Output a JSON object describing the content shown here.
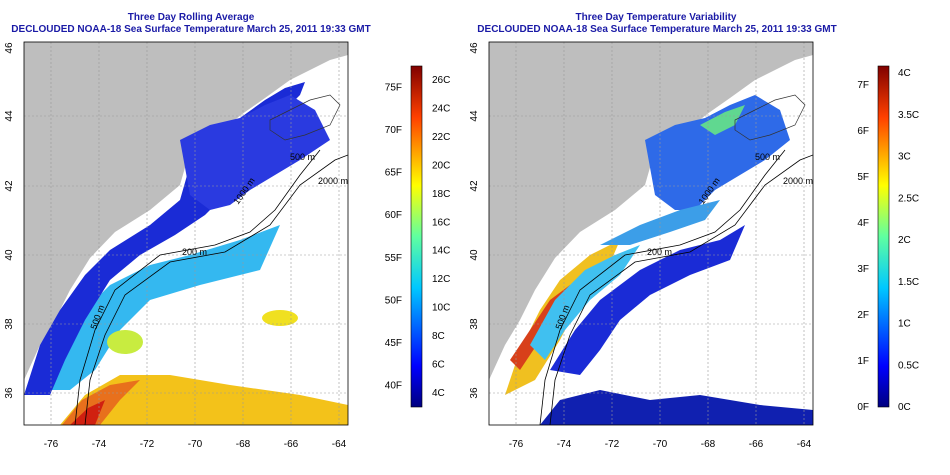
{
  "left_panel": {
    "title_line1": "Three Day Rolling Average",
    "title_line2": "DECLOUDED NOAA-18 Sea Surface Temperature March 25, 2011 19:33 GMT",
    "x_ticks": [
      "-76",
      "-74",
      "-72",
      "-70",
      "-68",
      "-66",
      "-64"
    ],
    "y_ticks": [
      "36",
      "38",
      "40",
      "42",
      "44",
      "46"
    ],
    "isobath_labels": [
      "200 m",
      "2000 m",
      "500 m",
      "500 m",
      "1000 m"
    ],
    "colorbar_c": [
      "4C",
      "6C",
      "8C",
      "10C",
      "12C",
      "14C",
      "16C",
      "18C",
      "20C",
      "22C",
      "24C",
      "26C"
    ],
    "colorbar_f": [
      "40F",
      "45F",
      "50F",
      "55F",
      "60F",
      "65F",
      "70F",
      "75F"
    ]
  },
  "right_panel": {
    "title_line1": "Three Day Temperature Variability",
    "title_line2": "DECLOUDED NOAA-18 Sea Surface Temperature March 25, 2011 19:33 GMT",
    "x_ticks": [
      "-76",
      "-74",
      "-72",
      "-70",
      "-68",
      "-66",
      "-64"
    ],
    "y_ticks": [
      "36",
      "38",
      "40",
      "42",
      "44",
      "46"
    ],
    "isobath_labels": [
      "200 m",
      "2000 m",
      "500 m",
      "500 m",
      "1000 m"
    ],
    "colorbar_c": [
      "0C",
      "0.5C",
      "1C",
      "1.5C",
      "2C",
      "2.5C",
      "3C",
      "3.5C",
      "4C"
    ],
    "colorbar_f": [
      "0F",
      "1F",
      "2F",
      "3F",
      "4F",
      "5F",
      "6F",
      "7F"
    ]
  },
  "colors": {
    "land": "#bebebe",
    "title": "#1a1aa6",
    "deep_blue": "#1a2bd6",
    "navy": "#0a0a9a",
    "cyan": "#3fd6e8",
    "yellow": "#f0e020",
    "orange": "#f08a20",
    "red": "#d02010"
  }
}
